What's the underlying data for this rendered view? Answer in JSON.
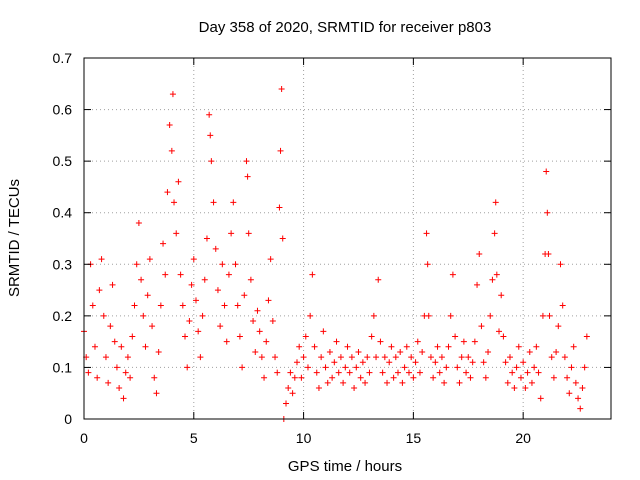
{
  "chart_data": {
    "type": "scatter",
    "title": "Day 358 of 2020, SRMTID for receiver p803",
    "xlabel": "GPS time / hours",
    "ylabel": "SRMTID / TECUs",
    "xlim": [
      0,
      24
    ],
    "ylim": [
      0,
      0.7
    ],
    "x_ticks": [
      0,
      5,
      10,
      15,
      20
    ],
    "x_tick_labels": [
      "0",
      "5",
      "10",
      "15",
      "20"
    ],
    "y_ticks": [
      0,
      0.1,
      0.2,
      0.3,
      0.4,
      0.5,
      0.6,
      0.7
    ],
    "y_tick_labels": [
      "0",
      "0.1",
      "0.2",
      "0.3",
      "0.4",
      "0.5",
      "0.6",
      "0.7"
    ],
    "grid": true,
    "marker": "+",
    "color": "#ff0000",
    "x_range_of_data": [
      0,
      22.9
    ],
    "series": [
      {
        "name": "SRMTID",
        "points": [
          [
            0.0,
            0.17
          ],
          [
            0.1,
            0.12
          ],
          [
            0.2,
            0.09
          ],
          [
            0.3,
            0.3
          ],
          [
            0.4,
            0.22
          ],
          [
            0.5,
            0.14
          ],
          [
            0.6,
            0.08
          ],
          [
            0.7,
            0.25
          ],
          [
            0.8,
            0.31
          ],
          [
            0.9,
            0.2
          ],
          [
            1.0,
            0.12
          ],
          [
            1.1,
            0.07
          ],
          [
            1.2,
            0.18
          ],
          [
            1.3,
            0.26
          ],
          [
            1.4,
            0.15
          ],
          [
            1.5,
            0.1
          ],
          [
            1.6,
            0.06
          ],
          [
            1.7,
            0.14
          ],
          [
            1.8,
            0.04
          ],
          [
            1.9,
            0.09
          ],
          [
            2.0,
            0.12
          ],
          [
            2.1,
            0.08
          ],
          [
            2.2,
            0.16
          ],
          [
            2.3,
            0.22
          ],
          [
            2.4,
            0.3
          ],
          [
            2.5,
            0.38
          ],
          [
            2.6,
            0.27
          ],
          [
            2.7,
            0.2
          ],
          [
            2.8,
            0.14
          ],
          [
            2.9,
            0.24
          ],
          [
            3.0,
            0.31
          ],
          [
            3.1,
            0.18
          ],
          [
            3.2,
            0.08
          ],
          [
            3.3,
            0.05
          ],
          [
            3.4,
            0.13
          ],
          [
            3.5,
            0.22
          ],
          [
            3.6,
            0.34
          ],
          [
            3.7,
            0.28
          ],
          [
            3.8,
            0.44
          ],
          [
            3.9,
            0.57
          ],
          [
            4.0,
            0.52
          ],
          [
            4.05,
            0.63
          ],
          [
            4.1,
            0.42
          ],
          [
            4.2,
            0.36
          ],
          [
            4.3,
            0.46
          ],
          [
            4.4,
            0.28
          ],
          [
            4.5,
            0.22
          ],
          [
            4.6,
            0.16
          ],
          [
            4.7,
            0.1
          ],
          [
            4.8,
            0.19
          ],
          [
            4.9,
            0.26
          ],
          [
            5.0,
            0.31
          ],
          [
            5.1,
            0.23
          ],
          [
            5.2,
            0.17
          ],
          [
            5.3,
            0.12
          ],
          [
            5.4,
            0.2
          ],
          [
            5.5,
            0.27
          ],
          [
            5.6,
            0.35
          ],
          [
            5.7,
            0.59
          ],
          [
            5.75,
            0.55
          ],
          [
            5.8,
            0.5
          ],
          [
            5.9,
            0.42
          ],
          [
            6.0,
            0.33
          ],
          [
            6.1,
            0.25
          ],
          [
            6.2,
            0.18
          ],
          [
            6.3,
            0.3
          ],
          [
            6.4,
            0.22
          ],
          [
            6.5,
            0.15
          ],
          [
            6.6,
            0.28
          ],
          [
            6.7,
            0.36
          ],
          [
            6.8,
            0.42
          ],
          [
            6.9,
            0.3
          ],
          [
            7.0,
            0.22
          ],
          [
            7.1,
            0.16
          ],
          [
            7.2,
            0.1
          ],
          [
            7.3,
            0.24
          ],
          [
            7.4,
            0.5
          ],
          [
            7.45,
            0.47
          ],
          [
            7.5,
            0.36
          ],
          [
            7.6,
            0.27
          ],
          [
            7.7,
            0.19
          ],
          [
            7.8,
            0.13
          ],
          [
            7.9,
            0.21
          ],
          [
            8.0,
            0.17
          ],
          [
            8.1,
            0.12
          ],
          [
            8.2,
            0.08
          ],
          [
            8.3,
            0.15
          ],
          [
            8.4,
            0.23
          ],
          [
            8.5,
            0.31
          ],
          [
            8.6,
            0.19
          ],
          [
            8.7,
            0.12
          ],
          [
            8.8,
            0.09
          ],
          [
            8.9,
            0.41
          ],
          [
            8.95,
            0.52
          ],
          [
            9.0,
            0.64
          ],
          [
            9.05,
            0.35
          ],
          [
            9.1,
            0.0
          ],
          [
            9.2,
            0.03
          ],
          [
            9.3,
            0.06
          ],
          [
            9.4,
            0.09
          ],
          [
            9.5,
            0.05
          ],
          [
            9.6,
            0.08
          ],
          [
            9.7,
            0.11
          ],
          [
            9.8,
            0.14
          ],
          [
            9.9,
            0.08
          ],
          [
            10.0,
            0.12
          ],
          [
            10.1,
            0.16
          ],
          [
            10.2,
            0.1
          ],
          [
            10.3,
            0.2
          ],
          [
            10.4,
            0.28
          ],
          [
            10.5,
            0.14
          ],
          [
            10.6,
            0.09
          ],
          [
            10.7,
            0.06
          ],
          [
            10.8,
            0.12
          ],
          [
            10.9,
            0.17
          ],
          [
            11.0,
            0.1
          ],
          [
            11.1,
            0.07
          ],
          [
            11.2,
            0.13
          ],
          [
            11.3,
            0.08
          ],
          [
            11.4,
            0.11
          ],
          [
            11.5,
            0.15
          ],
          [
            11.6,
            0.09
          ],
          [
            11.7,
            0.12
          ],
          [
            11.8,
            0.07
          ],
          [
            11.9,
            0.1
          ],
          [
            12.0,
            0.14
          ],
          [
            12.1,
            0.09
          ],
          [
            12.2,
            0.12
          ],
          [
            12.3,
            0.06
          ],
          [
            12.4,
            0.1
          ],
          [
            12.5,
            0.13
          ],
          [
            12.6,
            0.08
          ],
          [
            12.7,
            0.11
          ],
          [
            12.8,
            0.07
          ],
          [
            12.9,
            0.12
          ],
          [
            13.0,
            0.09
          ],
          [
            13.1,
            0.16
          ],
          [
            13.2,
            0.2
          ],
          [
            13.3,
            0.12
          ],
          [
            13.4,
            0.27
          ],
          [
            13.5,
            0.15
          ],
          [
            13.6,
            0.09
          ],
          [
            13.7,
            0.12
          ],
          [
            13.8,
            0.07
          ],
          [
            13.9,
            0.11
          ],
          [
            14.0,
            0.14
          ],
          [
            14.1,
            0.08
          ],
          [
            14.2,
            0.12
          ],
          [
            14.3,
            0.09
          ],
          [
            14.4,
            0.13
          ],
          [
            14.5,
            0.07
          ],
          [
            14.6,
            0.1
          ],
          [
            14.7,
            0.14
          ],
          [
            14.8,
            0.09
          ],
          [
            14.9,
            0.12
          ],
          [
            15.0,
            0.08
          ],
          [
            15.1,
            0.11
          ],
          [
            15.2,
            0.15
          ],
          [
            15.3,
            0.09
          ],
          [
            15.4,
            0.13
          ],
          [
            15.5,
            0.2
          ],
          [
            15.6,
            0.36
          ],
          [
            15.65,
            0.3
          ],
          [
            15.7,
            0.2
          ],
          [
            15.8,
            0.12
          ],
          [
            15.9,
            0.08
          ],
          [
            16.0,
            0.11
          ],
          [
            16.1,
            0.14
          ],
          [
            16.2,
            0.09
          ],
          [
            16.3,
            0.12
          ],
          [
            16.4,
            0.07
          ],
          [
            16.5,
            0.1
          ],
          [
            16.6,
            0.14
          ],
          [
            16.7,
            0.2
          ],
          [
            16.8,
            0.28
          ],
          [
            16.9,
            0.16
          ],
          [
            17.0,
            0.1
          ],
          [
            17.1,
            0.07
          ],
          [
            17.2,
            0.12
          ],
          [
            17.3,
            0.15
          ],
          [
            17.4,
            0.09
          ],
          [
            17.5,
            0.12
          ],
          [
            17.6,
            0.08
          ],
          [
            17.7,
            0.11
          ],
          [
            17.8,
            0.15
          ],
          [
            17.9,
            0.26
          ],
          [
            18.0,
            0.32
          ],
          [
            18.1,
            0.18
          ],
          [
            18.2,
            0.11
          ],
          [
            18.3,
            0.08
          ],
          [
            18.4,
            0.13
          ],
          [
            18.5,
            0.2
          ],
          [
            18.6,
            0.27
          ],
          [
            18.7,
            0.36
          ],
          [
            18.75,
            0.42
          ],
          [
            18.8,
            0.28
          ],
          [
            18.9,
            0.17
          ],
          [
            19.0,
            0.24
          ],
          [
            19.1,
            0.16
          ],
          [
            19.2,
            0.11
          ],
          [
            19.3,
            0.07
          ],
          [
            19.4,
            0.12
          ],
          [
            19.5,
            0.09
          ],
          [
            19.6,
            0.06
          ],
          [
            19.7,
            0.1
          ],
          [
            19.8,
            0.14
          ],
          [
            19.9,
            0.08
          ],
          [
            20.0,
            0.11
          ],
          [
            20.1,
            0.06
          ],
          [
            20.2,
            0.09
          ],
          [
            20.3,
            0.13
          ],
          [
            20.4,
            0.07
          ],
          [
            20.5,
            0.1
          ],
          [
            20.6,
            0.14
          ],
          [
            20.7,
            0.09
          ],
          [
            20.8,
            0.04
          ],
          [
            20.9,
            0.2
          ],
          [
            21.0,
            0.32
          ],
          [
            21.05,
            0.48
          ],
          [
            21.1,
            0.4
          ],
          [
            21.15,
            0.32
          ],
          [
            21.2,
            0.2
          ],
          [
            21.3,
            0.12
          ],
          [
            21.4,
            0.08
          ],
          [
            21.5,
            0.13
          ],
          [
            21.6,
            0.18
          ],
          [
            21.7,
            0.3
          ],
          [
            21.8,
            0.22
          ],
          [
            21.9,
            0.12
          ],
          [
            22.0,
            0.08
          ],
          [
            22.1,
            0.05
          ],
          [
            22.2,
            0.1
          ],
          [
            22.3,
            0.14
          ],
          [
            22.4,
            0.07
          ],
          [
            22.5,
            0.04
          ],
          [
            22.6,
            0.02
          ],
          [
            22.7,
            0.06
          ],
          [
            22.8,
            0.1
          ],
          [
            22.9,
            0.16
          ]
        ]
      }
    ]
  }
}
